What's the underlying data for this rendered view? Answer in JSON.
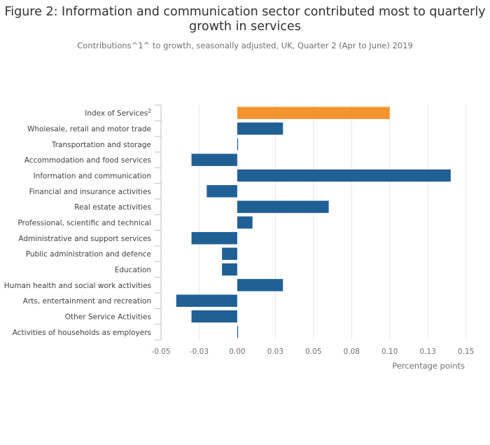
{
  "chart_data": {
    "type": "bar",
    "orientation": "horizontal",
    "title": "Figure 2: Information and communication sector contributed most to quarterly growth in services",
    "subtitle": "Contributions^1^ to growth, seasonally adjusted, UK, Quarter 2 (Apr to June) 2019",
    "xlabel": "Percentage points",
    "ylabel": "",
    "xlim": [
      -0.05,
      0.152
    ],
    "grid": true,
    "xticks": [
      -0.05,
      -0.025,
      0,
      0.025,
      0.05,
      0.075,
      0.1,
      0.125,
      0.15
    ],
    "xtick_labels": [
      "-0.05",
      "-0.03",
      "0.00",
      "0.03",
      "0.05",
      "0.08",
      "0.10",
      "0.13",
      "0.15"
    ],
    "categories": [
      {
        "label": "Index of Services",
        "superscript": "2"
      },
      {
        "label": "Wholesale, retail and motor trade",
        "superscript": ""
      },
      {
        "label": "Transportation and storage",
        "superscript": ""
      },
      {
        "label": "Accommodation and food services",
        "superscript": ""
      },
      {
        "label": "Information and communication",
        "superscript": ""
      },
      {
        "label": "Financial and insurance activities",
        "superscript": ""
      },
      {
        "label": "Real estate activities",
        "superscript": ""
      },
      {
        "label": "Professional, scientific and technical",
        "superscript": ""
      },
      {
        "label": "Administrative and support services",
        "superscript": ""
      },
      {
        "label": "Public administration and defence",
        "superscript": ""
      },
      {
        "label": "Education",
        "superscript": ""
      },
      {
        "label": "Human health and social work activities",
        "superscript": ""
      },
      {
        "label": "Arts, entertainment and recreation",
        "superscript": ""
      },
      {
        "label": "Other Service Activities",
        "superscript": ""
      },
      {
        "label": "Activities of households as employers",
        "superscript": ""
      }
    ],
    "values": [
      0.1,
      0.03,
      0.0,
      -0.03,
      0.14,
      -0.02,
      0.06,
      0.01,
      -0.03,
      -0.01,
      -0.01,
      0.03,
      -0.04,
      -0.03,
      0.0
    ],
    "colors": {
      "highlight": "#f39431",
      "default": "#206095",
      "grid": "#e6e6e6",
      "axis": "#bebebe"
    },
    "highlight_index": 0
  }
}
